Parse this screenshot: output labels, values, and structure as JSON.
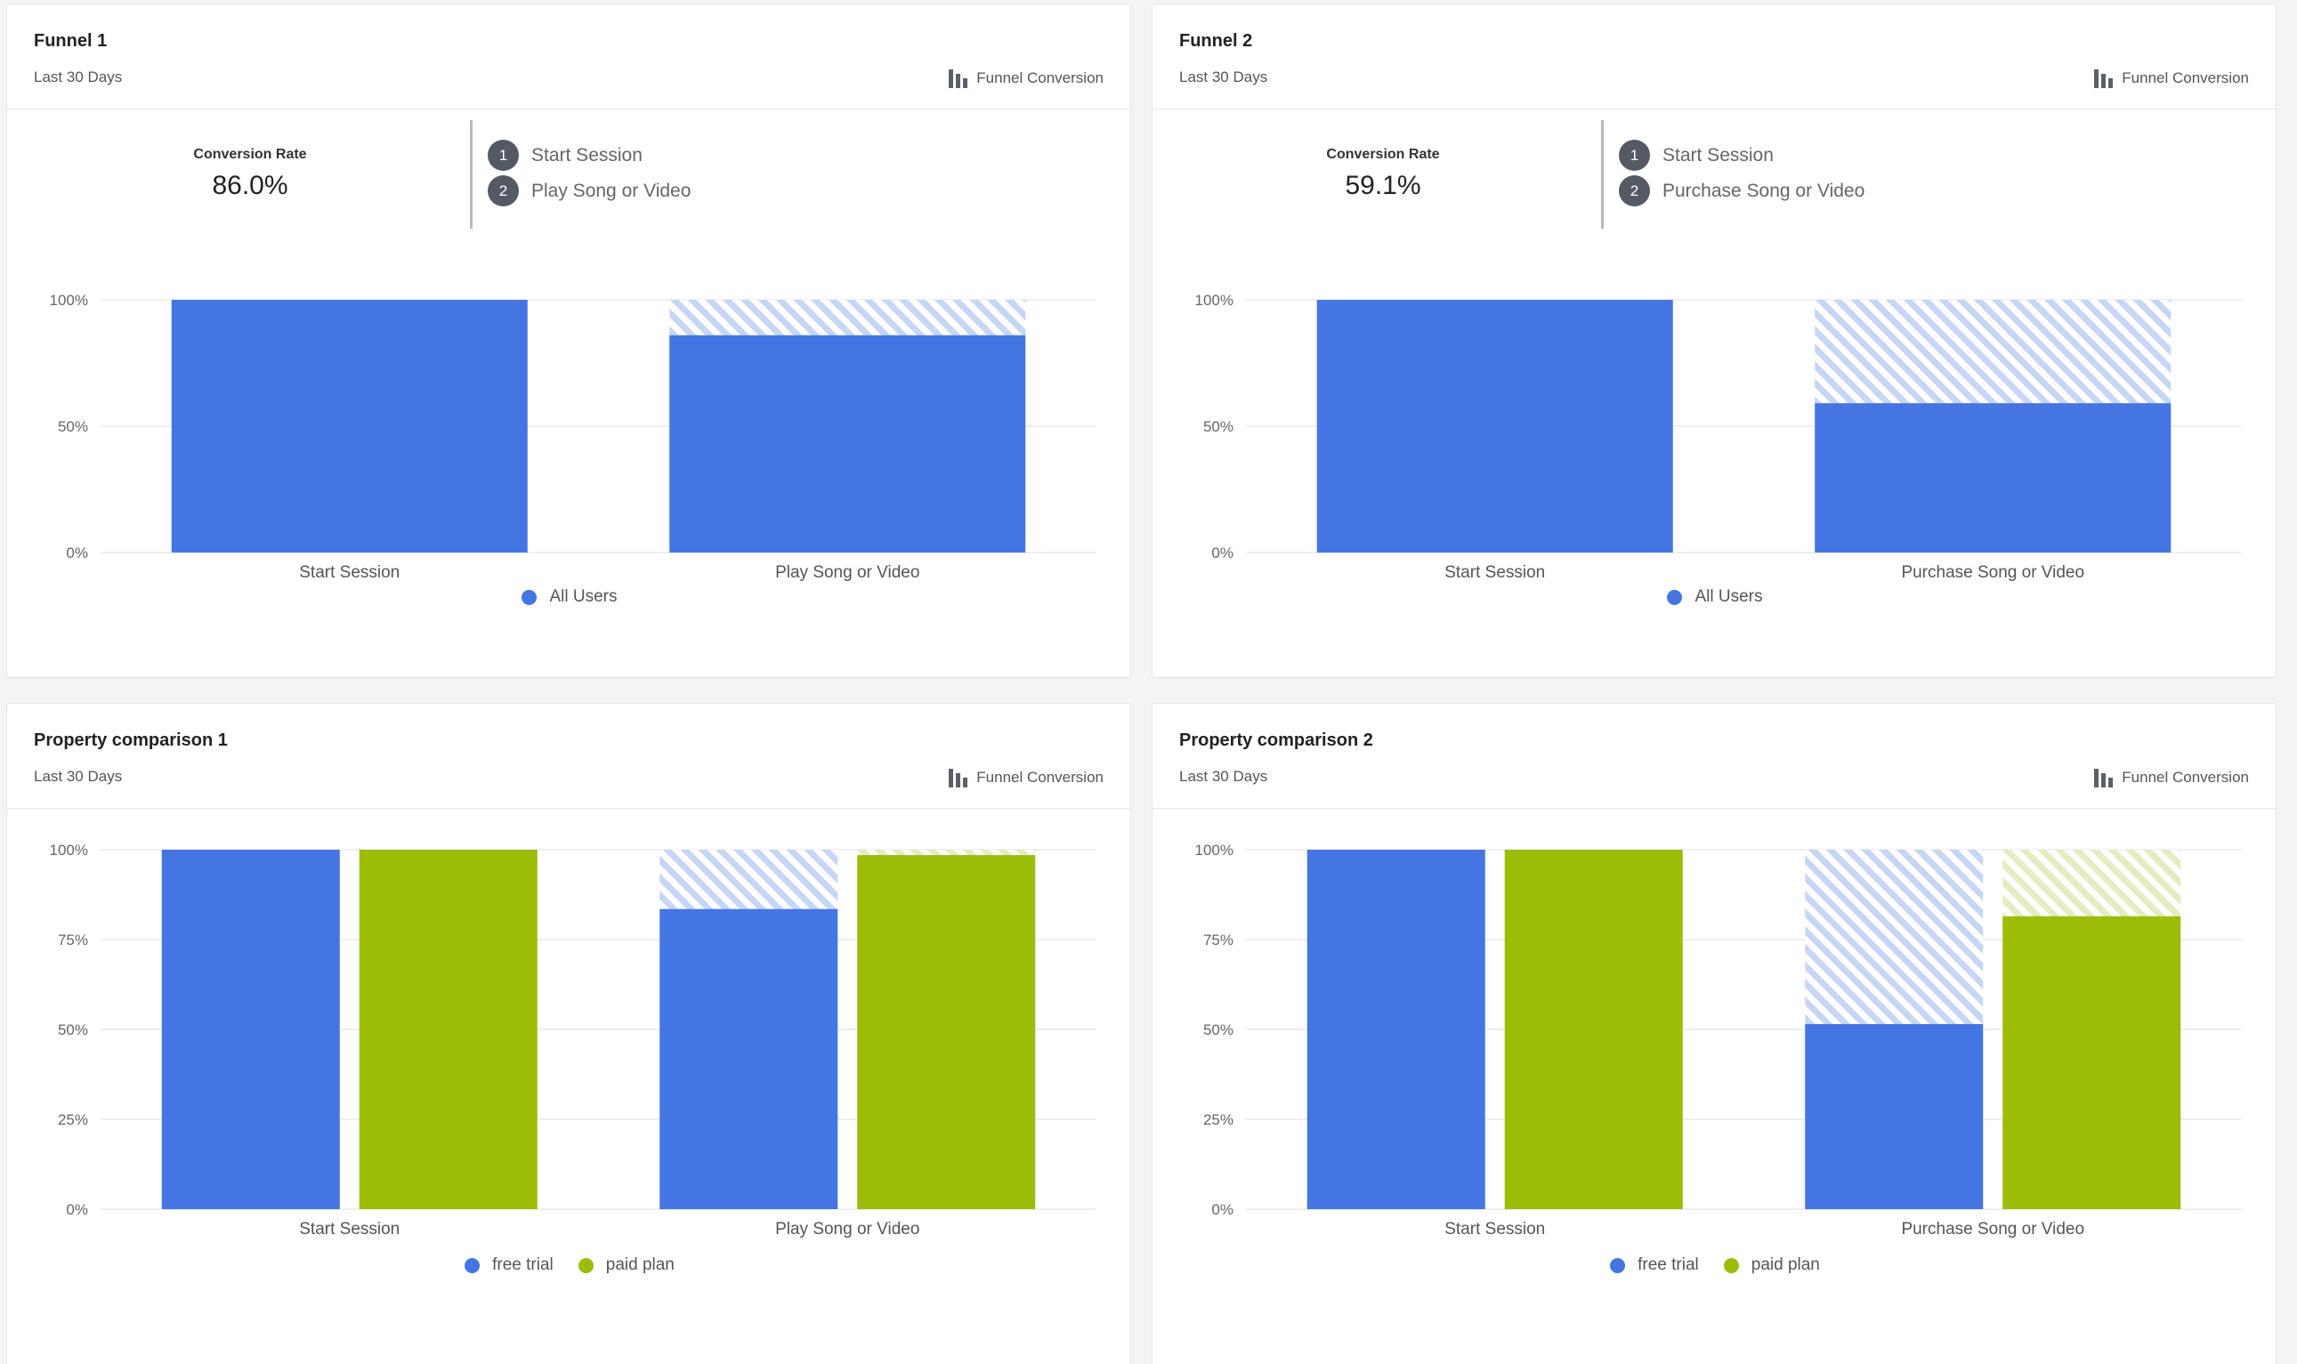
{
  "colors": {
    "blue": "#4475e3",
    "green": "#9bbd06",
    "blue_hatch": "#c5d6f6",
    "green_hatch": "#e2edc0",
    "grid": "#e8eaed"
  },
  "cards": [
    {
      "title": "Funnel 1",
      "subtitle": "Last 30 Days",
      "type_label": "Funnel Conversion",
      "conversion_label": "Conversion Rate",
      "conversion_value": "86.0%",
      "steps": [
        {
          "num": "1",
          "label": "Start Session"
        },
        {
          "num": "2",
          "label": "Play Song or Video"
        }
      ],
      "legend": [
        {
          "label": "All Users",
          "color": "#4475e3"
        }
      ]
    },
    {
      "title": "Funnel 2",
      "subtitle": "Last 30 Days",
      "type_label": "Funnel Conversion",
      "conversion_label": "Conversion Rate",
      "conversion_value": "59.1%",
      "steps": [
        {
          "num": "1",
          "label": "Start Session"
        },
        {
          "num": "2",
          "label": "Purchase Song or Video"
        }
      ],
      "legend": [
        {
          "label": "All Users",
          "color": "#4475e3"
        }
      ]
    },
    {
      "title": "Property comparison 1",
      "subtitle": "Last 30 Days",
      "type_label": "Funnel Conversion",
      "legend": [
        {
          "label": "free trial",
          "color": "#4475e3"
        },
        {
          "label": "paid plan",
          "color": "#9bbd06"
        }
      ]
    },
    {
      "title": "Property comparison 2",
      "subtitle": "Last 30 Days",
      "type_label": "Funnel Conversion",
      "legend": [
        {
          "label": "free trial",
          "color": "#4475e3"
        },
        {
          "label": "paid plan",
          "color": "#9bbd06"
        }
      ]
    }
  ],
  "chart_data": [
    {
      "type": "bar",
      "categories": [
        "Start Session",
        "Play Song or Video"
      ],
      "y_ticks": [
        "0%",
        "50%",
        "100%"
      ],
      "ylim": [
        0,
        100
      ],
      "series": [
        {
          "name": "All Users",
          "values": [
            100,
            86.0
          ]
        }
      ],
      "dropoff_shown": true
    },
    {
      "type": "bar",
      "categories": [
        "Start Session",
        "Purchase Song or Video"
      ],
      "y_ticks": [
        "0%",
        "50%",
        "100%"
      ],
      "ylim": [
        0,
        100
      ],
      "series": [
        {
          "name": "All Users",
          "values": [
            100,
            59.1
          ]
        }
      ],
      "dropoff_shown": true
    },
    {
      "type": "bar",
      "categories": [
        "Start Session",
        "Play Song or Video"
      ],
      "y_ticks": [
        "0%",
        "25%",
        "50%",
        "75%",
        "100%"
      ],
      "ylim": [
        0,
        100
      ],
      "series": [
        {
          "name": "free trial",
          "values": [
            100,
            83.5
          ]
        },
        {
          "name": "paid plan",
          "values": [
            100,
            98.5
          ]
        }
      ],
      "dropoff_shown": true
    },
    {
      "type": "bar",
      "categories": [
        "Start Session",
        "Purchase Song or Video"
      ],
      "y_ticks": [
        "0%",
        "25%",
        "50%",
        "75%",
        "100%"
      ],
      "ylim": [
        0,
        100
      ],
      "series": [
        {
          "name": "free trial",
          "values": [
            100,
            51.5
          ]
        },
        {
          "name": "paid plan",
          "values": [
            100,
            81.5
          ]
        }
      ],
      "dropoff_shown": true
    }
  ]
}
